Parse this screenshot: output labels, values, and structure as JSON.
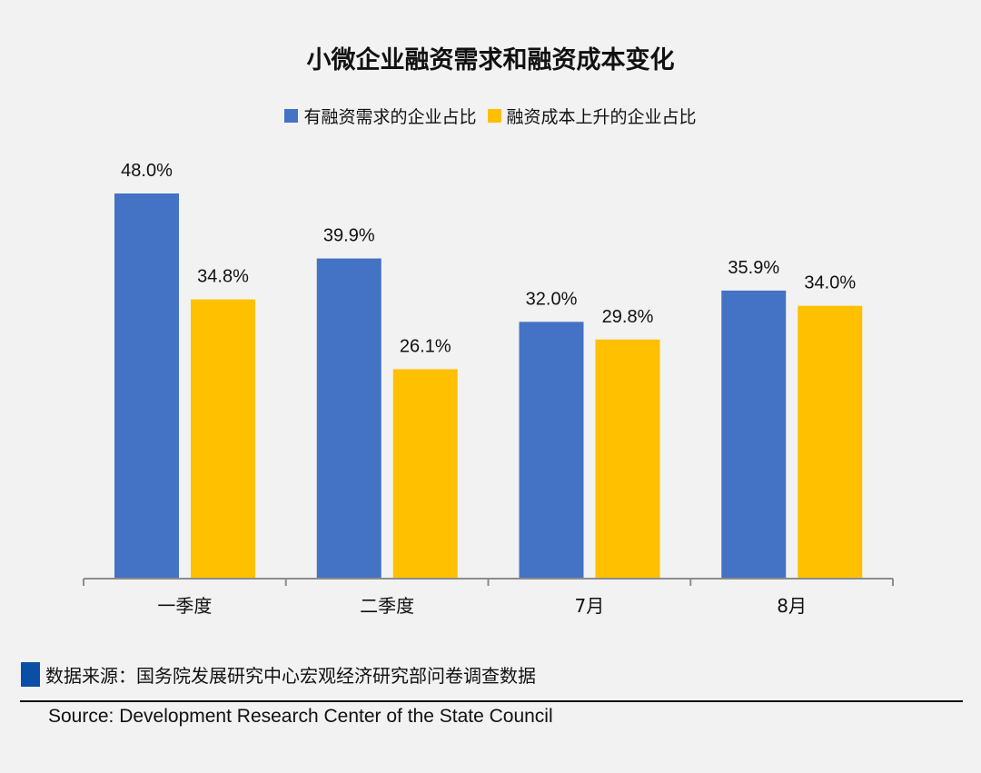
{
  "chart_data": {
    "type": "bar",
    "title": "小微企业融资需求和融资成本变化",
    "categories": [
      "一季度",
      "二季度",
      "7月",
      "8月"
    ],
    "series": [
      {
        "name": "有融资需求的企业占比",
        "color": "#4472C4",
        "values": [
          48.0,
          39.9,
          32.0,
          35.9
        ]
      },
      {
        "name": "融资成本上升的企业占比",
        "color": "#FFC000",
        "values": [
          34.8,
          26.1,
          29.8,
          34.0
        ]
      }
    ],
    "value_suffix": "%",
    "ylim": [
      0,
      48
    ],
    "grid": false,
    "legend": "top-center",
    "xlabel": "",
    "ylabel": ""
  },
  "footer": {
    "source_cn": "数据来源：国务院发展研究中心宏观经济研究部问卷调查数据",
    "source_en": "Source: Development Research Center of the State Council",
    "marker_color": "#0a4ea8"
  }
}
